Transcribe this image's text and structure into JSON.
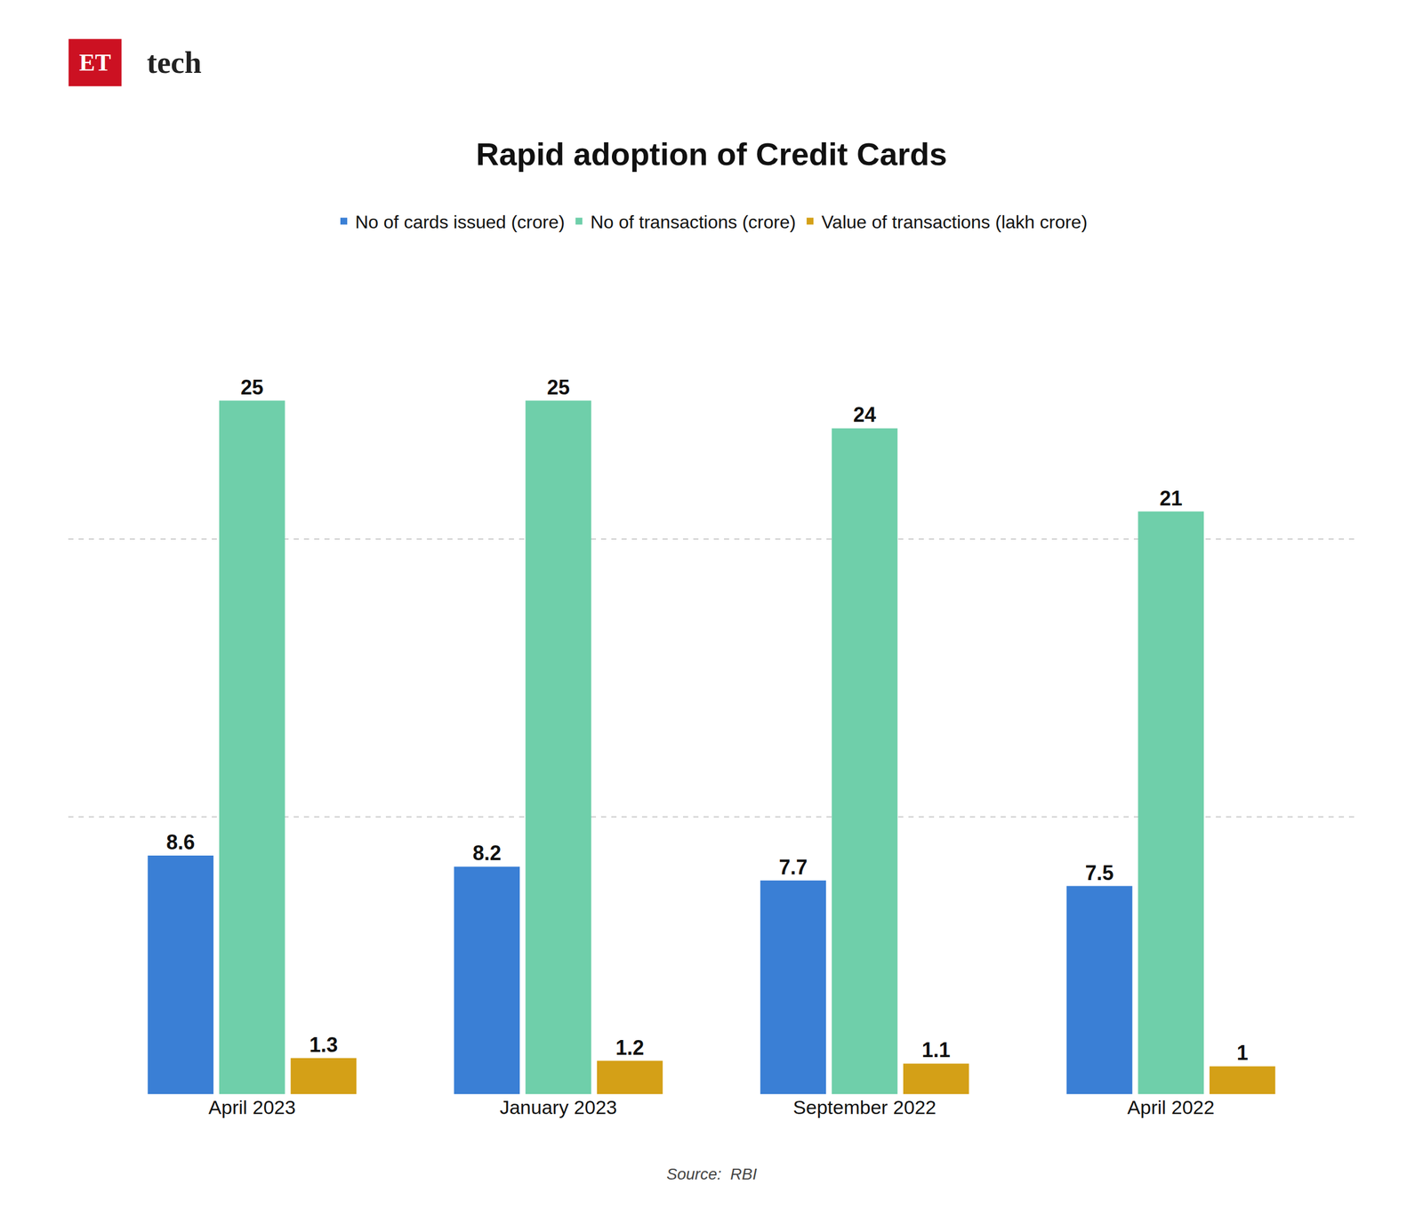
{
  "chart_data": {
    "type": "bar",
    "title": "Rapid adoption of Credit Cards",
    "categories": [
      "April 2023",
      "January 2023",
      "September 2022",
      "April 2022"
    ],
    "series": [
      {
        "name": "No of cards issued (crore)",
        "color": "#3a7fd5",
        "values": [
          8.6,
          8.2,
          7.7,
          7.5
        ]
      },
      {
        "name": "No of transactions (crore)",
        "color": "#6fcfaa",
        "values": [
          25,
          25,
          24,
          21
        ]
      },
      {
        "name": "Value of transactions (lakh crore)",
        "color": "#d4a017",
        "values": [
          1.3,
          1.2,
          1.1,
          1.0
        ],
        "value_labels": [
          "1.3",
          "1.2",
          "1.1",
          "1"
        ]
      }
    ],
    "ylim": [
      0,
      30
    ],
    "yticks": [
      0,
      10,
      20,
      30
    ],
    "grid": true,
    "legend": "top",
    "data_labels": true,
    "tick_labels": "x",
    "annotations": [
      {
        "text": "ET",
        "color": "#cc1122"
      },
      {
        "text": "tech"
      },
      {
        "text": "Source:  RBI"
      }
    ]
  }
}
